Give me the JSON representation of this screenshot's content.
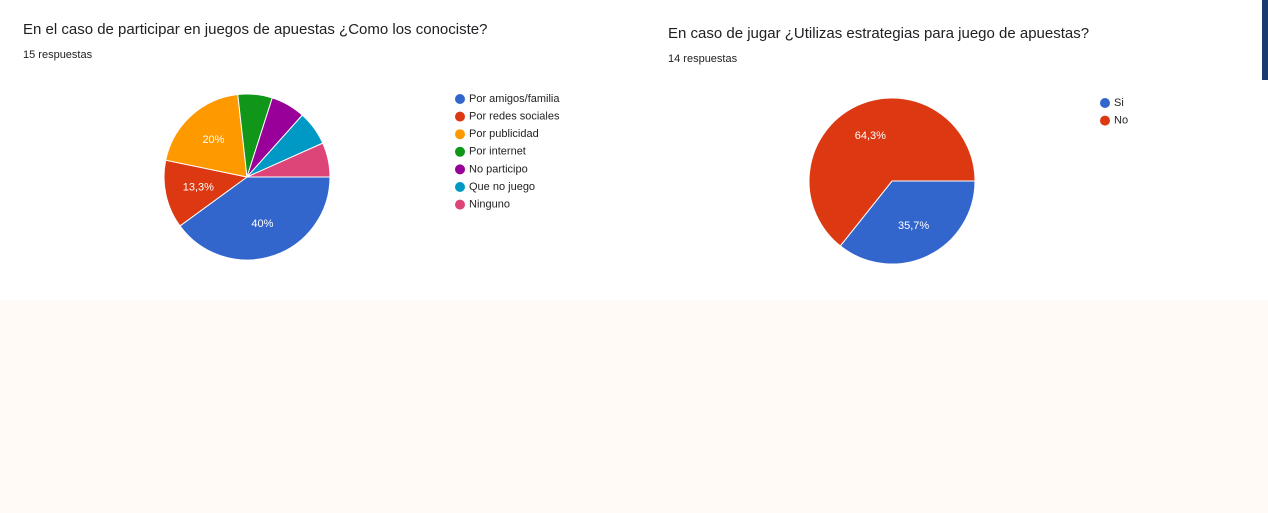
{
  "chart_data": [
    {
      "type": "pie",
      "title": "En el caso de participar en juegos de apuestas ¿Como los conociste?",
      "subtitle": "15 respuestas",
      "categories": [
        "Por amigos/familia",
        "Por redes sociales",
        "Por publicidad",
        "Por internet",
        "No participo",
        "Que no juego",
        "Ninguno"
      ],
      "values": [
        40,
        13.3,
        20,
        6.7,
        6.7,
        6.7,
        6.7
      ],
      "value_labels": [
        "40%",
        "13,3%",
        "20%",
        null,
        null,
        null,
        null
      ],
      "colors": [
        "#3366cc",
        "#dc3912",
        "#ff9900",
        "#109618",
        "#990099",
        "#0099c6",
        "#dd4477"
      ]
    },
    {
      "type": "pie",
      "title": "En caso de jugar ¿Utilizas estrategias para juego de apuestas?",
      "subtitle": "14 respuestas",
      "categories": [
        "Si",
        "No"
      ],
      "values": [
        35.7,
        64.3
      ],
      "value_labels": [
        "35,7%",
        "64,3%"
      ],
      "colors": [
        "#3366cc",
        "#dc3912"
      ]
    }
  ]
}
